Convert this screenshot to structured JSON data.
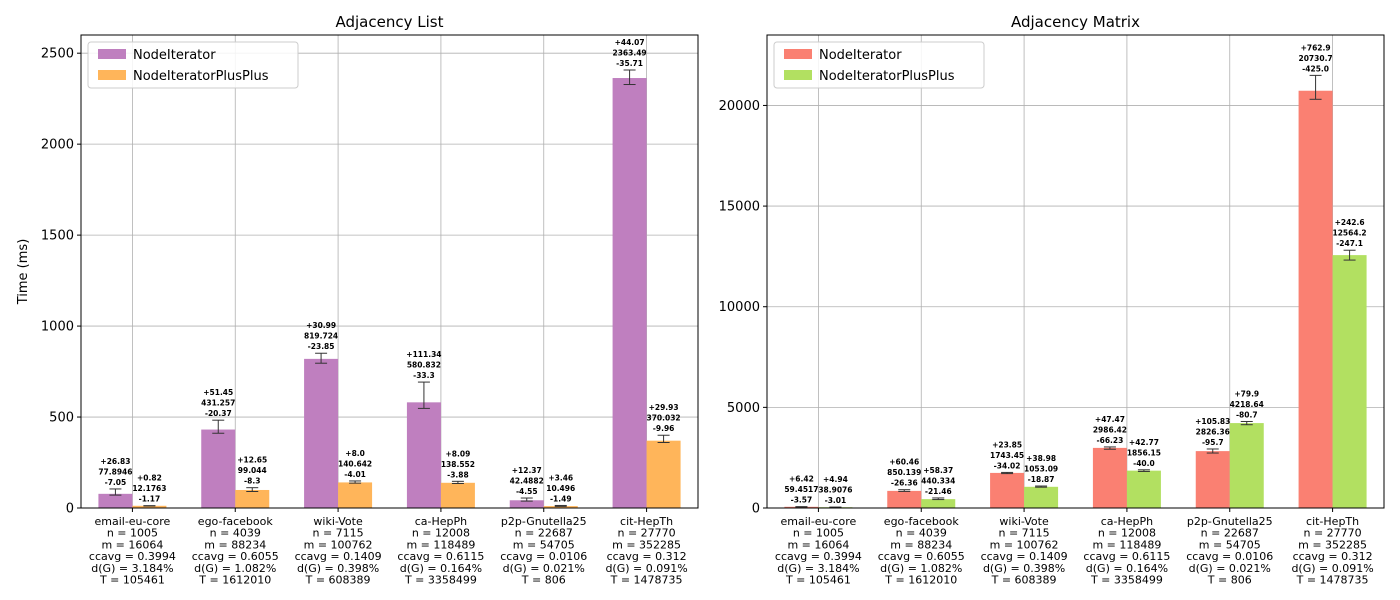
{
  "chart_data": [
    {
      "type": "bar",
      "title": "Adjacency List",
      "ylabel": "Time (ms)",
      "ylim": [
        0,
        2600
      ],
      "yticks": [
        0,
        500,
        1000,
        1500,
        2000,
        2500
      ],
      "grid": true,
      "legend_position": "top-left",
      "category_labels": [
        [
          "email-eu-core",
          "n = 1005",
          "m = 16064",
          "ccavg = 0.3994",
          "d(G) = 3.184%",
          "T = 105461"
        ],
        [
          "ego-facebook",
          "n = 4039",
          "m = 88234",
          "ccavg = 0.6055",
          "d(G) = 1.082%",
          "T = 1612010"
        ],
        [
          "wiki-Vote",
          "n = 7115",
          "m = 100762",
          "ccavg = 0.1409",
          "d(G) = 0.398%",
          "T = 608389"
        ],
        [
          "ca-HepPh",
          "n = 12008",
          "m = 118489",
          "ccavg = 0.6115",
          "d(G) = 0.164%",
          "T = 3358499"
        ],
        [
          "p2p-Gnutella25",
          "n = 22687",
          "m = 54705",
          "ccavg = 0.0106",
          "d(G) = 0.021%",
          "T = 806"
        ],
        [
          "cit-HepTh",
          "n = 27770",
          "m = 352285",
          "ccavg = 0.312",
          "d(G) = 0.091%",
          "T = 1478735"
        ]
      ],
      "series": [
        {
          "name": "NodeIterator",
          "color": "#bf7fbf",
          "values": [
            77.8946,
            431.257,
            819.724,
            580.832,
            42.4882,
            2363.49
          ],
          "err_plus": [
            26.83,
            51.45,
            30.99,
            111.34,
            12.37,
            44.07
          ],
          "err_minus": [
            7.05,
            20.37,
            23.85,
            33.3,
            4.55,
            35.71
          ],
          "labels": [
            [
              "+26.83",
              "77.8946",
              "-7.05"
            ],
            [
              "+51.45",
              "431.257",
              "-20.37"
            ],
            [
              "+30.99",
              "819.724",
              "-23.85"
            ],
            [
              "+111.34",
              "580.832",
              "-33.3"
            ],
            [
              "+12.37",
              "42.4882",
              "-4.55"
            ],
            [
              "+44.07",
              "2363.49",
              "-35.71"
            ]
          ]
        },
        {
          "name": "NodeIteratorPlusPlus",
          "color": "#ffb55a",
          "values": [
            12.1763,
            99.044,
            140.642,
            138.552,
            10.496,
            370.032
          ],
          "err_plus": [
            0.82,
            12.65,
            8.0,
            8.09,
            3.46,
            29.93
          ],
          "err_minus": [
            1.17,
            8.3,
            4.01,
            3.88,
            1.49,
            9.96
          ],
          "labels": [
            [
              "+0.82",
              "12.1763",
              "-1.17"
            ],
            [
              "+12.65",
              "99.044",
              "-8.3"
            ],
            [
              "+8.0",
              "140.642",
              "-4.01"
            ],
            [
              "+8.09",
              "138.552",
              "-3.88"
            ],
            [
              "+3.46",
              "10.496",
              "-1.49"
            ],
            [
              "+29.93",
              "370.032",
              "-9.96"
            ]
          ]
        }
      ]
    },
    {
      "type": "bar",
      "title": "Adjacency Matrix",
      "ylabel": "",
      "ylim": [
        0,
        23500
      ],
      "yticks": [
        0,
        5000,
        10000,
        15000,
        20000
      ],
      "grid": true,
      "legend_position": "top-left",
      "category_labels": [
        [
          "email-eu-core",
          "n = 1005",
          "m = 16064",
          "ccavg = 0.3994",
          "d(G) = 3.184%",
          "T = 105461"
        ],
        [
          "ego-facebook",
          "n = 4039",
          "m = 88234",
          "ccavg = 0.6055",
          "d(G) = 1.082%",
          "T = 1612010"
        ],
        [
          "wiki-Vote",
          "n = 7115",
          "m = 100762",
          "ccavg = 0.1409",
          "d(G) = 0.398%",
          "T = 608389"
        ],
        [
          "ca-HepPh",
          "n = 12008",
          "m = 118489",
          "ccavg = 0.6115",
          "d(G) = 0.164%",
          "T = 3358499"
        ],
        [
          "p2p-Gnutella25",
          "n = 22687",
          "m = 54705",
          "ccavg = 0.0106",
          "d(G) = 0.021%",
          "T = 806"
        ],
        [
          "cit-HepTh",
          "n = 27770",
          "m = 352285",
          "ccavg = 0.312",
          "d(G) = 0.091%",
          "T = 1478735"
        ]
      ],
      "series": [
        {
          "name": "NodeIterator",
          "color": "#fa8072",
          "values": [
            59.4517,
            850.139,
            1743.45,
            2986.42,
            2826.36,
            20730.7
          ],
          "err_plus": [
            6.42,
            60.46,
            23.85,
            47.47,
            105.83,
            762.9
          ],
          "err_minus": [
            3.57,
            26.36,
            34.02,
            66.23,
            95.7,
            425.0
          ],
          "labels": [
            [
              "+6.42",
              "59.4517",
              "-3.57"
            ],
            [
              "+60.46",
              "850.139",
              "-26.36"
            ],
            [
              "+23.85",
              "1743.45",
              "-34.02"
            ],
            [
              "+47.47",
              "2986.42",
              "-66.23"
            ],
            [
              "+105.83",
              "2826.36",
              "-95.7"
            ],
            [
              "+762.9",
              "20730.7",
              "-425.0"
            ]
          ]
        },
        {
          "name": "NodeIteratorPlusPlus",
          "color": "#b2e061",
          "values": [
            38.9076,
            440.334,
            1053.09,
            1856.15,
            4218.64,
            12564.2
          ],
          "err_plus": [
            4.94,
            58.37,
            38.98,
            42.77,
            79.9,
            242.6
          ],
          "err_minus": [
            3.01,
            21.46,
            18.87,
            40.0,
            80.7,
            247.1
          ],
          "labels": [
            [
              "+4.94",
              "38.9076",
              "-3.01"
            ],
            [
              "+58.37",
              "440.334",
              "-21.46"
            ],
            [
              "+38.98",
              "1053.09",
              "-18.87"
            ],
            [
              "+42.77",
              "1856.15",
              "-40.0"
            ],
            [
              "+79.9",
              "4218.64",
              "-80.7"
            ],
            [
              "+242.6",
              "12564.2",
              "-247.1"
            ]
          ]
        }
      ]
    }
  ]
}
